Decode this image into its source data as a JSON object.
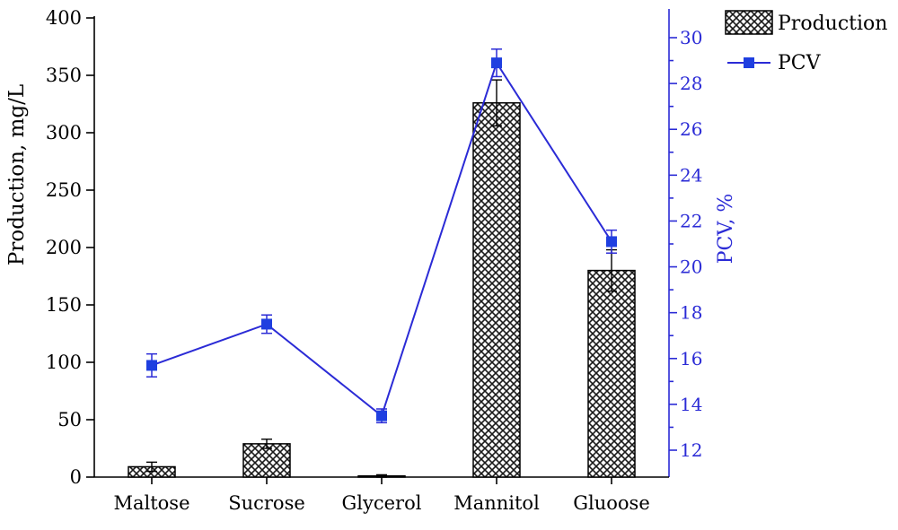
{
  "chart_data": {
    "type": "bar",
    "categories": [
      "Maltose",
      "Sucrose",
      "Glycerol",
      "Mannitol",
      "Gluoose"
    ],
    "series": [
      {
        "name": "Production",
        "kind": "bar",
        "axis": "left",
        "values": [
          9,
          29,
          1,
          326,
          180
        ],
        "errors": [
          4,
          4,
          1,
          20,
          18
        ]
      },
      {
        "name": "PCV",
        "kind": "line",
        "axis": "right",
        "values": [
          15.7,
          17.5,
          13.5,
          28.9,
          21.1
        ],
        "errors": [
          0.5,
          0.4,
          0.3,
          0.6,
          0.5
        ]
      }
    ],
    "ylabel": "Production, mg/L",
    "y2label": "PCV, %",
    "ylim": [
      0,
      400
    ],
    "y2lim": [
      11,
      31
    ],
    "yticks": [
      "0",
      "50",
      "100",
      "150",
      "200",
      "250",
      "300",
      "350",
      "400"
    ],
    "y2ticks": [
      "12",
      "14",
      "16",
      "18",
      "20",
      "22",
      "24",
      "26",
      "28",
      "30"
    ],
    "colors": {
      "bar_fill": "#ffffff",
      "bar_hatch": "#1a1a1a",
      "line": "#2b2bd6",
      "marker": "#1f3fe0",
      "right_axis": "#2b2bd6"
    },
    "legend_position": "top-right",
    "grid": false
  }
}
